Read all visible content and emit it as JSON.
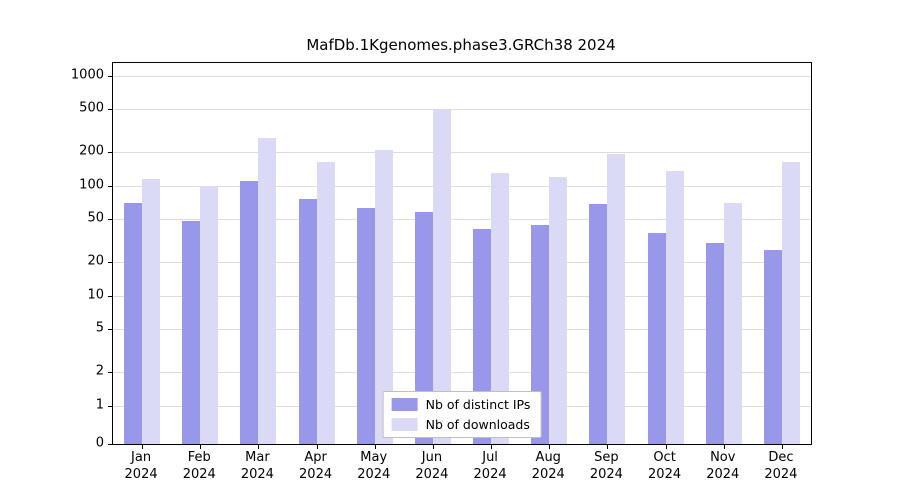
{
  "title": "MafDb.1Kgenomes.phase3.GRCh38 2024",
  "chart_data": {
    "type": "bar",
    "title": "MafDb.1Kgenomes.phase3.GRCh38 2024",
    "categories": [
      "Jan",
      "Feb",
      "Mar",
      "Apr",
      "May",
      "Jun",
      "Jul",
      "Aug",
      "Sep",
      "Oct",
      "Nov",
      "Dec"
    ],
    "year_label": "2024",
    "series": [
      {
        "name": "Nb of distinct IPs",
        "color": "#9897ea",
        "values": [
          70,
          48,
          110,
          75,
          63,
          58,
          40,
          44,
          68,
          37,
          30,
          26
        ]
      },
      {
        "name": "Nb of downloads",
        "color": "#dadaf7",
        "values": [
          115,
          100,
          270,
          165,
          210,
          500,
          130,
          120,
          195,
          135,
          70,
          165
        ]
      }
    ],
    "yticks": [
      0,
      1,
      2,
      5,
      10,
      20,
      50,
      100,
      200,
      500,
      1000
    ],
    "scale": "symlog",
    "ylim": [
      0,
      1300
    ],
    "grid": true,
    "legend_position": "bottom-center",
    "xlabel": "",
    "ylabel": ""
  }
}
